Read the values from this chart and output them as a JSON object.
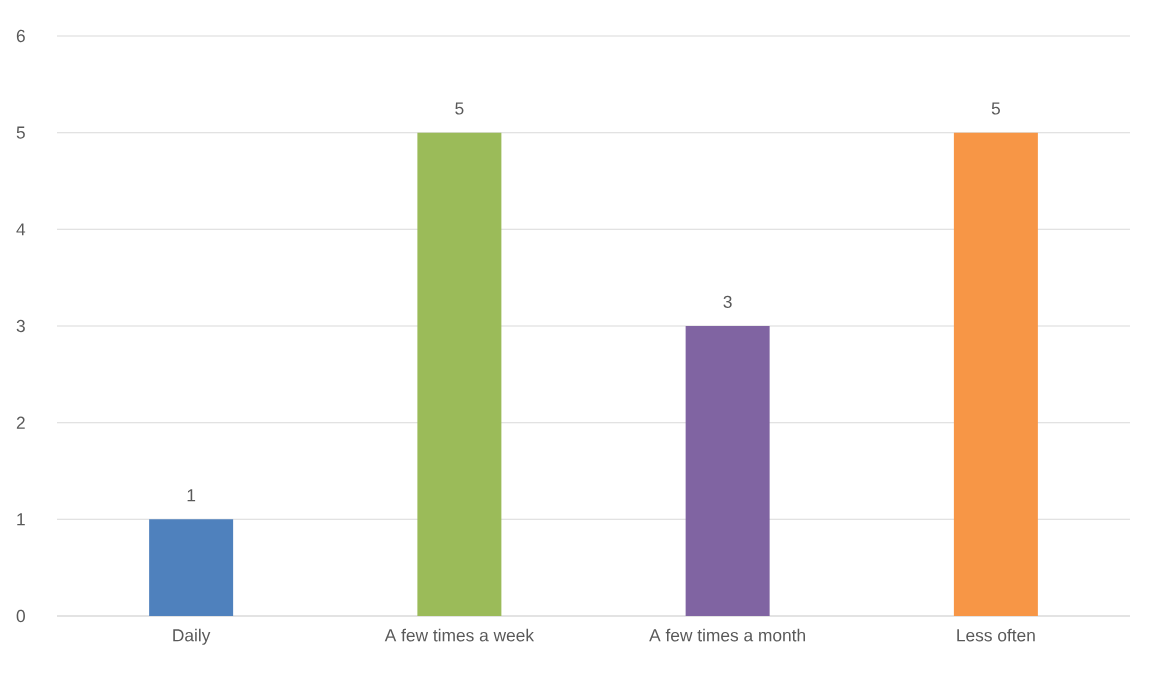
{
  "chart_data": {
    "type": "bar",
    "categories": [
      "Daily",
      "A few times a week",
      "A few times a month",
      "Less often"
    ],
    "values": [
      1,
      5,
      3,
      5
    ],
    "colors": [
      "#4f81bd",
      "#9bbb59",
      "#8064a2",
      "#f79646"
    ],
    "ylim": [
      0,
      6
    ],
    "yticks": [
      0,
      1,
      2,
      3,
      4,
      5,
      6
    ],
    "grid": "y",
    "data_labels": true
  }
}
